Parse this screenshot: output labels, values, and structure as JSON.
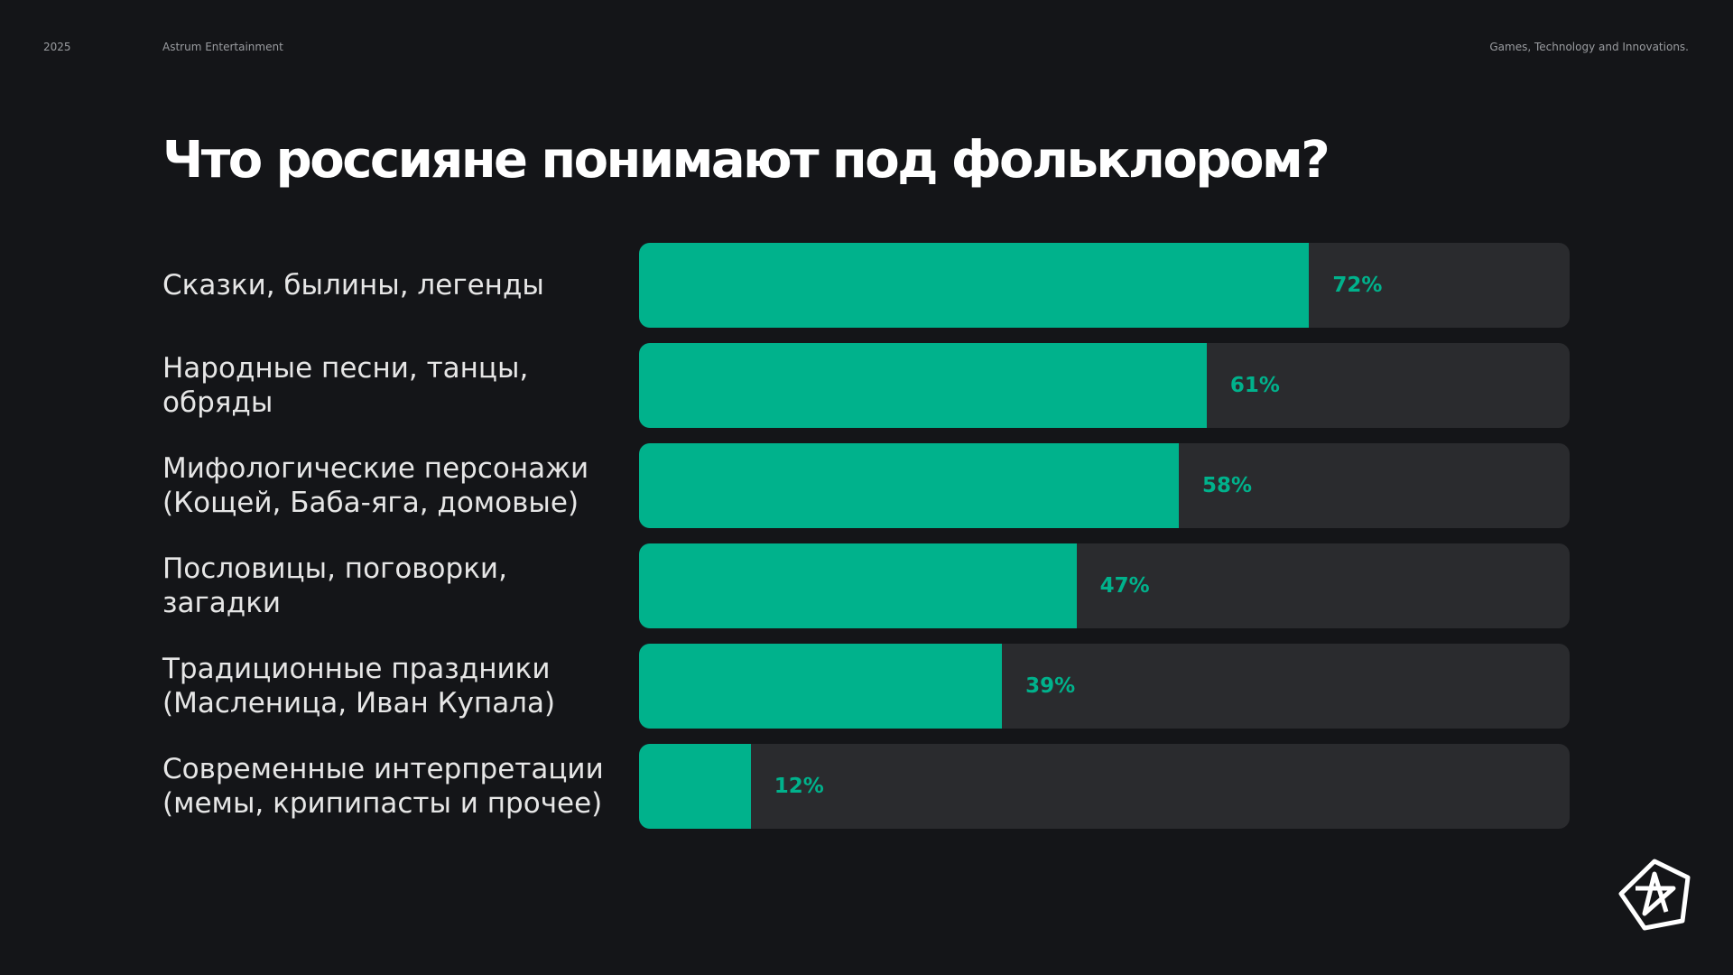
{
  "header": {
    "year": "2025",
    "company": "Astrum Entertainment",
    "tagline": "Games, Technology and Innovations."
  },
  "chart_data": {
    "type": "bar",
    "orientation": "horizontal",
    "title": "Что россияне понимают под фольклором?",
    "categories": [
      "Сказки, былины, легенды",
      "Народные песни, танцы,\nобряды",
      "Мифологические персонажи\n(Кощей, Баба-яга, домовые)",
      "Пословицы, поговорки,\nзагадки",
      "Традиционные праздники\n(Масленица, Иван Купала)",
      "Современные интерпретации\n(мемы, крипипасты и прочее)"
    ],
    "values": [
      72,
      61,
      58,
      47,
      39,
      12
    ],
    "value_labels": [
      "72%",
      "61%",
      "58%",
      "47%",
      "39%",
      "12%"
    ],
    "xlim": [
      0,
      100
    ],
    "color": "#00b28c",
    "track_color": "#2a2b2e"
  }
}
